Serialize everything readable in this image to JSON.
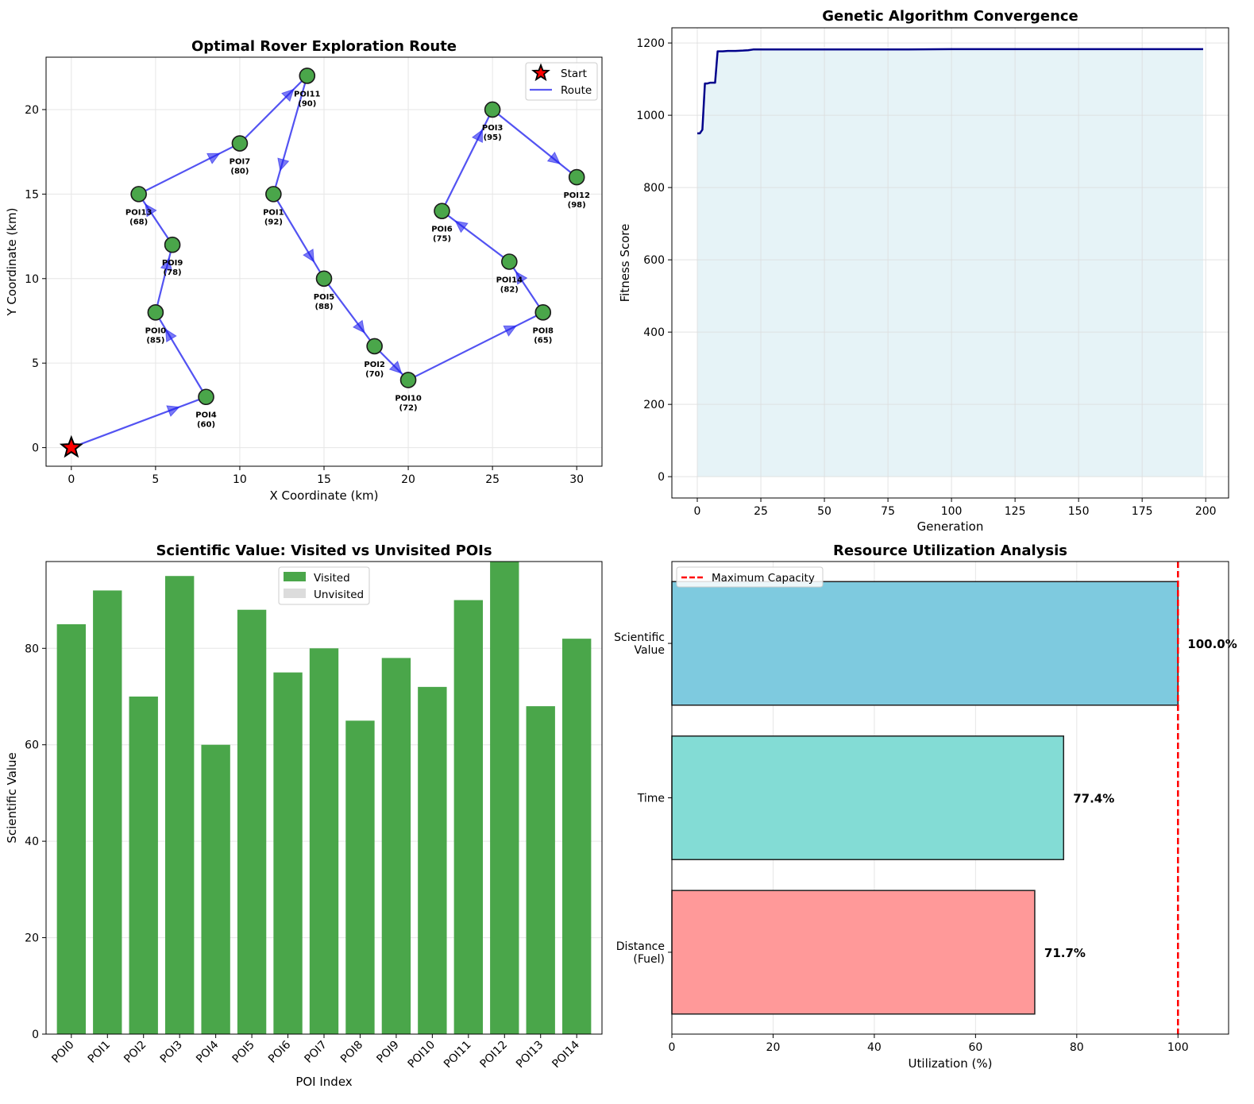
{
  "chart_data": [
    {
      "type": "scatter",
      "title": "Optimal Rover Exploration Route",
      "xlabel": "X Coordinate (km)",
      "ylabel": "Y Coordinate (km)",
      "xlim": [
        -1.5,
        31.5
      ],
      "ylim": [
        -1.1,
        23.1
      ],
      "xticks": [
        0,
        5,
        10,
        15,
        20,
        25,
        30
      ],
      "yticks": [
        0,
        5,
        10,
        15,
        20
      ],
      "grid": true,
      "legend": [
        "Start",
        "Route"
      ],
      "legend_position": "upper right",
      "colors": {
        "poi": "#4aa64a",
        "route": "#2222ee",
        "start": "#ff0000"
      },
      "start": {
        "x": 0,
        "y": 0
      },
      "pois": [
        {
          "name": "POI0",
          "value": 85,
          "x": 5,
          "y": 8
        },
        {
          "name": "POI1",
          "value": 92,
          "x": 12,
          "y": 15
        },
        {
          "name": "POI2",
          "value": 70,
          "x": 18,
          "y": 6
        },
        {
          "name": "POI3",
          "value": 95,
          "x": 25,
          "y": 20
        },
        {
          "name": "POI4",
          "value": 60,
          "x": 8,
          "y": 3
        },
        {
          "name": "POI5",
          "value": 88,
          "x": 15,
          "y": 10
        },
        {
          "name": "POI6",
          "value": 75,
          "x": 22,
          "y": 14
        },
        {
          "name": "POI7",
          "value": 80,
          "x": 10,
          "y": 18
        },
        {
          "name": "POI8",
          "value": 65,
          "x": 28,
          "y": 8
        },
        {
          "name": "POI9",
          "value": 78,
          "x": 6,
          "y": 12
        },
        {
          "name": "POI10",
          "value": 72,
          "x": 20,
          "y": 4
        },
        {
          "name": "POI11",
          "value": 90,
          "x": 14,
          "y": 22
        },
        {
          "name": "POI12",
          "value": 98,
          "x": 30,
          "y": 16
        },
        {
          "name": "POI13",
          "value": 68,
          "x": 4,
          "y": 15
        },
        {
          "name": "POI14",
          "value": 82,
          "x": 26,
          "y": 11
        }
      ],
      "route": [
        4,
        0,
        9,
        13,
        7,
        11,
        1,
        5,
        2,
        10,
        8,
        14,
        6,
        3,
        12
      ]
    },
    {
      "type": "line",
      "title": "Genetic Algorithm Convergence",
      "xlabel": "Generation",
      "ylabel": "Fitness Score",
      "xlim": [
        -10,
        209
      ],
      "ylim": [
        -59,
        1242
      ],
      "xticks": [
        0,
        25,
        50,
        75,
        100,
        125,
        150,
        175,
        200
      ],
      "yticks": [
        0,
        200,
        400,
        600,
        800,
        1000,
        1200
      ],
      "grid": true,
      "colors": {
        "line": "#00008b",
        "fill": "#add8e6"
      },
      "x": [
        0,
        1,
        2,
        3,
        4,
        5,
        6,
        7,
        8,
        9,
        10,
        12,
        15,
        18,
        20,
        22,
        25,
        30,
        40,
        60,
        80,
        100,
        150,
        199
      ],
      "y": [
        950,
        950,
        960,
        1088,
        1088,
        1090,
        1090,
        1090,
        1177,
        1177,
        1177,
        1178,
        1178,
        1179,
        1180,
        1182,
        1182,
        1182,
        1182,
        1182,
        1182,
        1183,
        1183,
        1183
      ]
    },
    {
      "type": "bar",
      "title": "Scientific Value: Visited vs Unvisited POIs",
      "xlabel": "POI Index",
      "ylabel": "Scientific Value",
      "ylim": [
        0,
        98
      ],
      "yticks": [
        0,
        20,
        40,
        60,
        80
      ],
      "grid": true,
      "legend": [
        "Visited",
        "Unvisited"
      ],
      "legend_position": "upper center",
      "colors": {
        "visited": "#4aa64a",
        "unvisited": "#dcdcdc"
      },
      "categories": [
        "POI0",
        "POI1",
        "POI2",
        "POI3",
        "POI4",
        "POI5",
        "POI6",
        "POI7",
        "POI8",
        "POI9",
        "POI10",
        "POI11",
        "POI12",
        "POI13",
        "POI14"
      ],
      "values": [
        85,
        92,
        70,
        95,
        60,
        88,
        75,
        80,
        65,
        78,
        72,
        90,
        98,
        68,
        82
      ],
      "visited": [
        true,
        true,
        true,
        true,
        true,
        true,
        true,
        true,
        true,
        true,
        true,
        true,
        true,
        true,
        true
      ]
    },
    {
      "type": "bar",
      "orientation": "horizontal",
      "title": "Resource Utilization Analysis",
      "xlabel": "Utilization (%)",
      "ylabel": "",
      "xlim": [
        0,
        110
      ],
      "xticks": [
        0,
        20,
        40,
        60,
        80,
        100
      ],
      "grid": true,
      "legend": [
        "Maximum Capacity"
      ],
      "legend_position": "upper left",
      "reference_line": 100,
      "colors": {
        "line": "#ff0000"
      },
      "bars": [
        {
          "label": "Distance\n(Fuel)",
          "value": 71.7,
          "text": "71.7%",
          "color": "#ff9999"
        },
        {
          "label": "Time",
          "value": 77.4,
          "text": "77.4%",
          "color": "#83dcd5"
        },
        {
          "label": "Scientific\nValue",
          "value": 100.0,
          "text": "100.0%",
          "color": "#7ecadf"
        }
      ]
    }
  ]
}
